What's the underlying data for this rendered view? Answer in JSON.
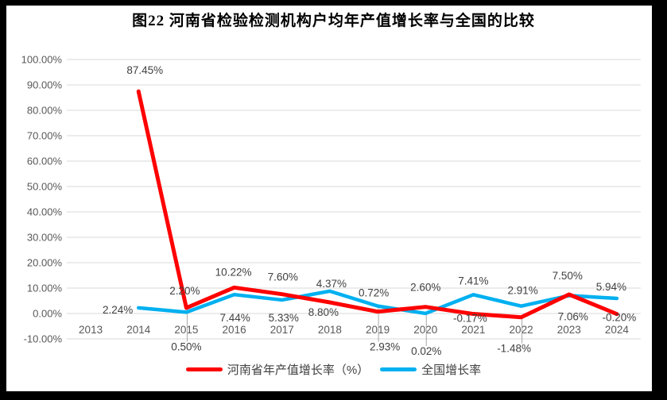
{
  "chart_data": {
    "type": "line",
    "title": "图22  河南省检验检测机构户均年产值增长率与全国的比较",
    "categories": [
      "2013",
      "2014",
      "2015",
      "2016",
      "2017",
      "2018",
      "2019",
      "2020",
      "2021",
      "2022",
      "2023",
      "2024"
    ],
    "series": [
      {
        "name": "河南省年产值增长率（%）",
        "color": "#FF0000",
        "line_width": 5,
        "values": [
          null,
          87.45,
          2.2,
          10.22,
          7.6,
          4.37,
          0.72,
          2.6,
          -0.17,
          -1.48,
          7.5,
          -0.2
        ],
        "labels": [
          null,
          "87.45%",
          "2.20%",
          "10.22%",
          "7.60%",
          "4.37%",
          "0.72%",
          "2.60%",
          "-0.17%",
          "-1.48%",
          "7.50%",
          "-0.20%"
        ],
        "label_offsets": [
          null,
          [
            8,
            -22
          ],
          [
            -2,
            -17
          ],
          [
            -1,
            -15
          ],
          [
            1,
            -17
          ],
          [
            2,
            -19
          ],
          [
            -5,
            -19
          ],
          [
            0,
            -20
          ],
          [
            -4,
            10
          ],
          [
            -9,
            44
          ],
          [
            -2,
            -19
          ],
          [
            3,
            9
          ]
        ]
      },
      {
        "name": "全国增长率",
        "color": "#00B0F0",
        "line_width": 4.5,
        "values": [
          null,
          2.24,
          0.5,
          7.44,
          5.33,
          8.8,
          2.93,
          0.02,
          7.41,
          2.91,
          7.06,
          5.94
        ],
        "labels": [
          null,
          "2.24%",
          "0.50%",
          "7.44%",
          "5.33%",
          "8.80%",
          "2.93%",
          "0.02%",
          "7.41%",
          "2.91%",
          "7.06%",
          "5.94%"
        ],
        "label_offsets": [
          null,
          [
            -7,
            7,
            "end"
          ],
          [
            0,
            48
          ],
          [
            1,
            34
          ],
          [
            2,
            27
          ],
          [
            -8,
            31
          ],
          [
            9,
            56
          ],
          [
            1,
            52
          ],
          [
            0,
            -13
          ],
          [
            2,
            -15
          ],
          [
            5,
            31
          ],
          [
            -7,
            -10
          ]
        ]
      }
    ],
    "y_axis": {
      "min": -10,
      "max": 100,
      "step": 10,
      "tick_labels": [
        "100.00%",
        "90.00%",
        "80.00%",
        "70.00%",
        "60.00%",
        "50.00%",
        "40.00%",
        "30.00%",
        "20.00%",
        "10.00%",
        "0.00%",
        "-10.00%"
      ]
    },
    "grid": true,
    "legend_position": "bottom",
    "label_leader_lines": [
      {
        "series": 0,
        "index": 9
      },
      {
        "series": 1,
        "index": 2
      },
      {
        "series": 1,
        "index": 6
      },
      {
        "series": 1,
        "index": 7
      }
    ],
    "colors": {
      "paper": "#FFFFFF",
      "border": "#000000",
      "grid": "#D9D9D9",
      "tick_text": "#595959",
      "data_label_text": "#404040",
      "leader": "#A6A6A6"
    }
  }
}
